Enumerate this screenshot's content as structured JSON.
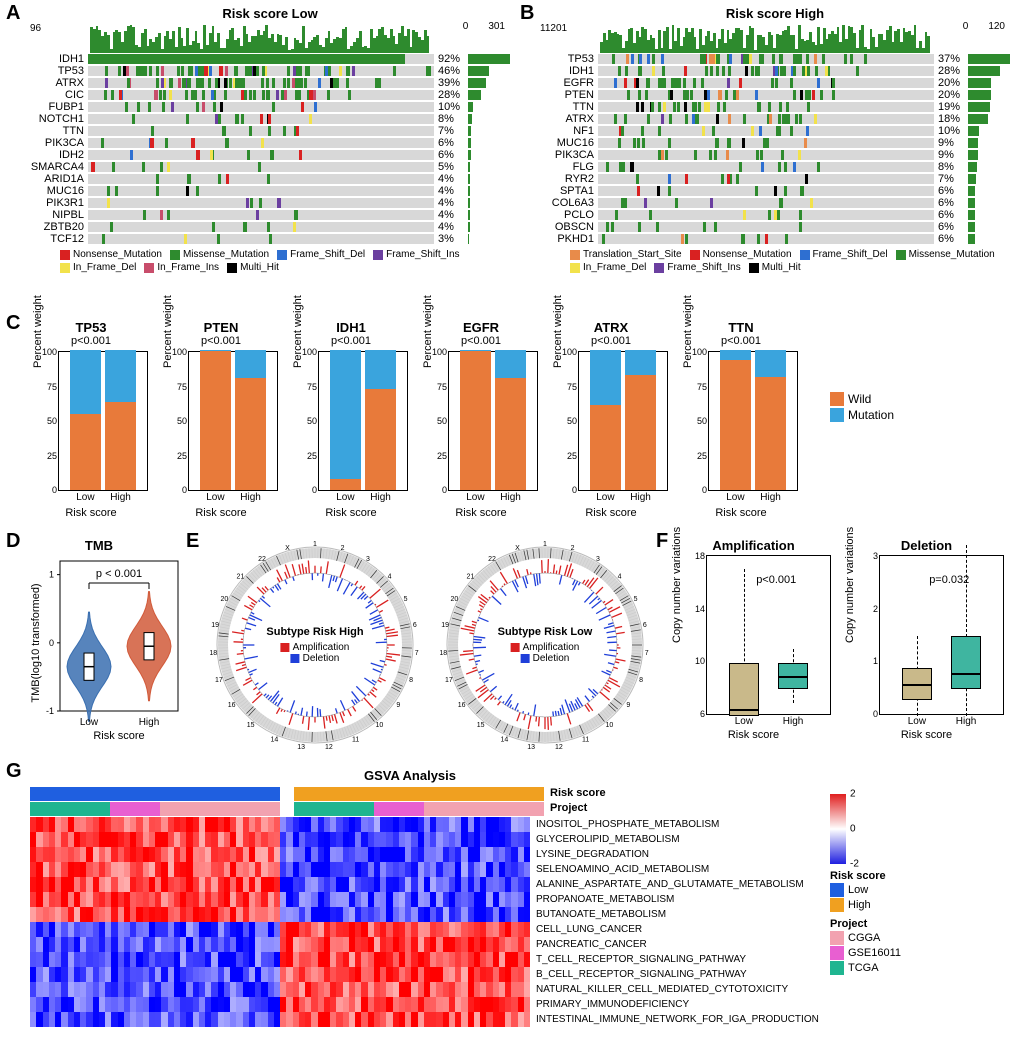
{
  "panels": {
    "A": {
      "label": "A",
      "title": "Risk score   Low",
      "top_axis_max": 96,
      "side_scale": [
        0,
        301
      ],
      "genes": [
        "IDH1",
        "TP53",
        "ATRX",
        "CIC",
        "FUBP1",
        "NOTCH1",
        "TTN",
        "PIK3CA",
        "IDH2",
        "SMARCA4",
        "ARID1A",
        "MUC16",
        "PIK3R1",
        "NIPBL",
        "ZBTB20",
        "TCF12"
      ],
      "percentages": [
        "92%",
        "46%",
        "39%",
        "28%",
        "10%",
        "8%",
        "7%",
        "6%",
        "6%",
        "5%",
        "4%",
        "4%",
        "4%",
        "4%",
        "4%",
        "3%"
      ],
      "legend": [
        {
          "label": "Nonsense_Mutation",
          "color": "#d92121"
        },
        {
          "label": "Missense_Mutation",
          "color": "#2e8b2e"
        },
        {
          "label": "Frame_Shift_Del",
          "color": "#2e6fd1"
        },
        {
          "label": "Frame_Shift_Ins",
          "color": "#6b3fa0"
        },
        {
          "label": "In_Frame_Del",
          "color": "#f2e24b"
        },
        {
          "label": "In_Frame_Ins",
          "color": "#c84d6b"
        },
        {
          "label": "Multi_Hit",
          "color": "#000000"
        }
      ]
    },
    "B": {
      "label": "B",
      "title": "Risk score   High",
      "top_axis_max": 11201,
      "side_scale": [
        0,
        120
      ],
      "genes": [
        "TP53",
        "IDH1",
        "EGFR",
        "PTEN",
        "TTN",
        "ATRX",
        "NF1",
        "MUC16",
        "PIK3CA",
        "FLG",
        "RYR2",
        "SPTA1",
        "COL6A3",
        "PCLO",
        "OBSCN",
        "PKHD1"
      ],
      "percentages": [
        "37%",
        "28%",
        "20%",
        "20%",
        "19%",
        "18%",
        "10%",
        "9%",
        "9%",
        "8%",
        "7%",
        "6%",
        "6%",
        "6%",
        "6%",
        "6%"
      ],
      "legend": [
        {
          "label": "Translation_Start_Site",
          "color": "#e88b4a"
        },
        {
          "label": "Nonsense_Mutation",
          "color": "#d92121"
        },
        {
          "label": "Frame_Shift_Del",
          "color": "#2e6fd1"
        },
        {
          "label": "Missense_Mutation",
          "color": "#2e8b2e"
        },
        {
          "label": "In_Frame_Del",
          "color": "#f2e24b"
        },
        {
          "label": "Frame_Shift_Ins",
          "color": "#6b3fa0"
        },
        {
          "label": "Multi_Hit",
          "color": "#000000"
        }
      ]
    },
    "C": {
      "label": "C",
      "legend": [
        {
          "label": "Wild",
          "color": "#e87a3a"
        },
        {
          "label": "Mutation",
          "color": "#3aa4dd"
        }
      ],
      "ylabel": "Percent weight",
      "xlabel": "Risk score",
      "yticks": [
        0,
        25,
        50,
        75,
        100
      ],
      "xticks": [
        "Low",
        "High"
      ],
      "charts": [
        {
          "gene": "TP53",
          "pval": "p<0.001",
          "low_wild": 54,
          "high_wild": 63
        },
        {
          "gene": "PTEN",
          "pval": "p<0.001",
          "low_wild": 99,
          "high_wild": 80
        },
        {
          "gene": "IDH1",
          "pval": "p<0.001",
          "low_wild": 8,
          "high_wild": 72
        },
        {
          "gene": "EGFR",
          "pval": "p<0.001",
          "low_wild": 99,
          "high_wild": 80
        },
        {
          "gene": "ATRX",
          "pval": "p<0.001",
          "low_wild": 61,
          "high_wild": 82
        },
        {
          "gene": "TTN",
          "pval": "p<0.001",
          "low_wild": 93,
          "high_wild": 81
        }
      ],
      "colors": {
        "wild": "#e87a3a",
        "mutation": "#3aa4dd"
      }
    },
    "D": {
      "label": "D",
      "title": "TMB",
      "pval": "p < 0.001",
      "ylabel": "TMB(log10 transformed)",
      "xlabel": "Risk score",
      "xticks": [
        "Low",
        "High"
      ],
      "yticks": [
        -1,
        0,
        1
      ],
      "low": {
        "median": -0.35,
        "q1": -0.55,
        "q3": -0.15,
        "color": "#3a6fb0"
      },
      "high": {
        "median": -0.05,
        "q1": -0.25,
        "q3": 0.15,
        "color": "#d15a3a"
      }
    },
    "E": {
      "label": "E",
      "plots": [
        {
          "title": "Subtype Risk High"
        },
        {
          "title": "Subtype Risk Low"
        }
      ],
      "legend": [
        {
          "label": "Amplification",
          "color": "#d92121"
        },
        {
          "label": "Deletion",
          "color": "#1f3fd9"
        }
      ],
      "chromosomes": [
        "1",
        "2",
        "3",
        "4",
        "5",
        "6",
        "7",
        "8",
        "9",
        "10",
        "11",
        "12",
        "13",
        "14",
        "15",
        "16",
        "17",
        "18",
        "19",
        "20",
        "21",
        "22",
        "X"
      ]
    },
    "F": {
      "label": "F",
      "ylabel": "Copy number variations",
      "xlabel": "Risk score",
      "xticks": [
        "Low",
        "High"
      ],
      "colors": {
        "low": "#c9b98a",
        "high": "#3fb5a0"
      },
      "plots": [
        {
          "title": "Amplification",
          "pval": "p<0.001",
          "yticks": [
            6,
            10,
            14,
            18
          ],
          "low": {
            "q1": 6,
            "median": 6.5,
            "q3": 10,
            "wmin": 6,
            "wmax": 17
          },
          "high": {
            "q1": 8,
            "median": 9,
            "q3": 10,
            "wmin": 7,
            "wmax": 11
          }
        },
        {
          "title": "Deletion",
          "pval": "p=0.032",
          "yticks": [
            0,
            1,
            2,
            3
          ],
          "low": {
            "q1": 0.3,
            "median": 0.6,
            "q3": 0.9,
            "wmin": 0,
            "wmax": 1.5
          },
          "high": {
            "q1": 0.5,
            "median": 0.8,
            "q3": 1.5,
            "wmin": 0,
            "wmax": 3.2
          }
        }
      ]
    },
    "G": {
      "label": "G",
      "title": "GSVA Analysis",
      "annotations": {
        "risk_score": {
          "label": "Risk score",
          "low_color": "#1f5fe0",
          "high_color": "#f0a020"
        },
        "project": {
          "label": "Project",
          "colors": {
            "CGGA": "#f2a2b0",
            "GSE16011": "#e85fd1",
            "TCGA": "#1fb590"
          }
        }
      },
      "pathways": [
        "INOSITOL_PHOSPHATE_METABOLISM",
        "GLYCEROLIPID_METABOLISM",
        "LYSINE_DEGRADATION",
        "SELENOAMINO_ACID_METABOLISM",
        "ALANINE_ASPARTATE_AND_GLUTAMATE_METABOLISM",
        "PROPANOATE_METABOLISM",
        "BUTANOATE_METABOLISM",
        "CELL_LUNG_CANCER",
        "PANCREATIC_CANCER",
        "T_CELL_RECEPTOR_SIGNALING_PATHWAY",
        "B_CELL_RECEPTOR_SIGNALING_PATHWAY",
        "NATURAL_KILLER_CELL_MEDIATED_CYTOTOXICITY",
        "PRIMARY_IMMUNODEFICIENCY",
        "INTESTINAL_IMMUNE_NETWORK_FOR_IGA_PRODUCTION"
      ],
      "upper_rows": 7,
      "color_scale": {
        "min": -2,
        "max": 2,
        "low": "#1f1fe0",
        "mid": "#ffffff",
        "high": "#e01f1f"
      },
      "legends": {
        "risk": [
          {
            "label": "Low",
            "color": "#1f5fe0"
          },
          {
            "label": "High",
            "color": "#f0a020"
          }
        ],
        "project": [
          {
            "label": "CGGA",
            "color": "#f2a2b0"
          },
          {
            "label": "GSE16011",
            "color": "#e85fd1"
          },
          {
            "label": "TCGA",
            "color": "#1fb590"
          }
        ]
      }
    }
  }
}
